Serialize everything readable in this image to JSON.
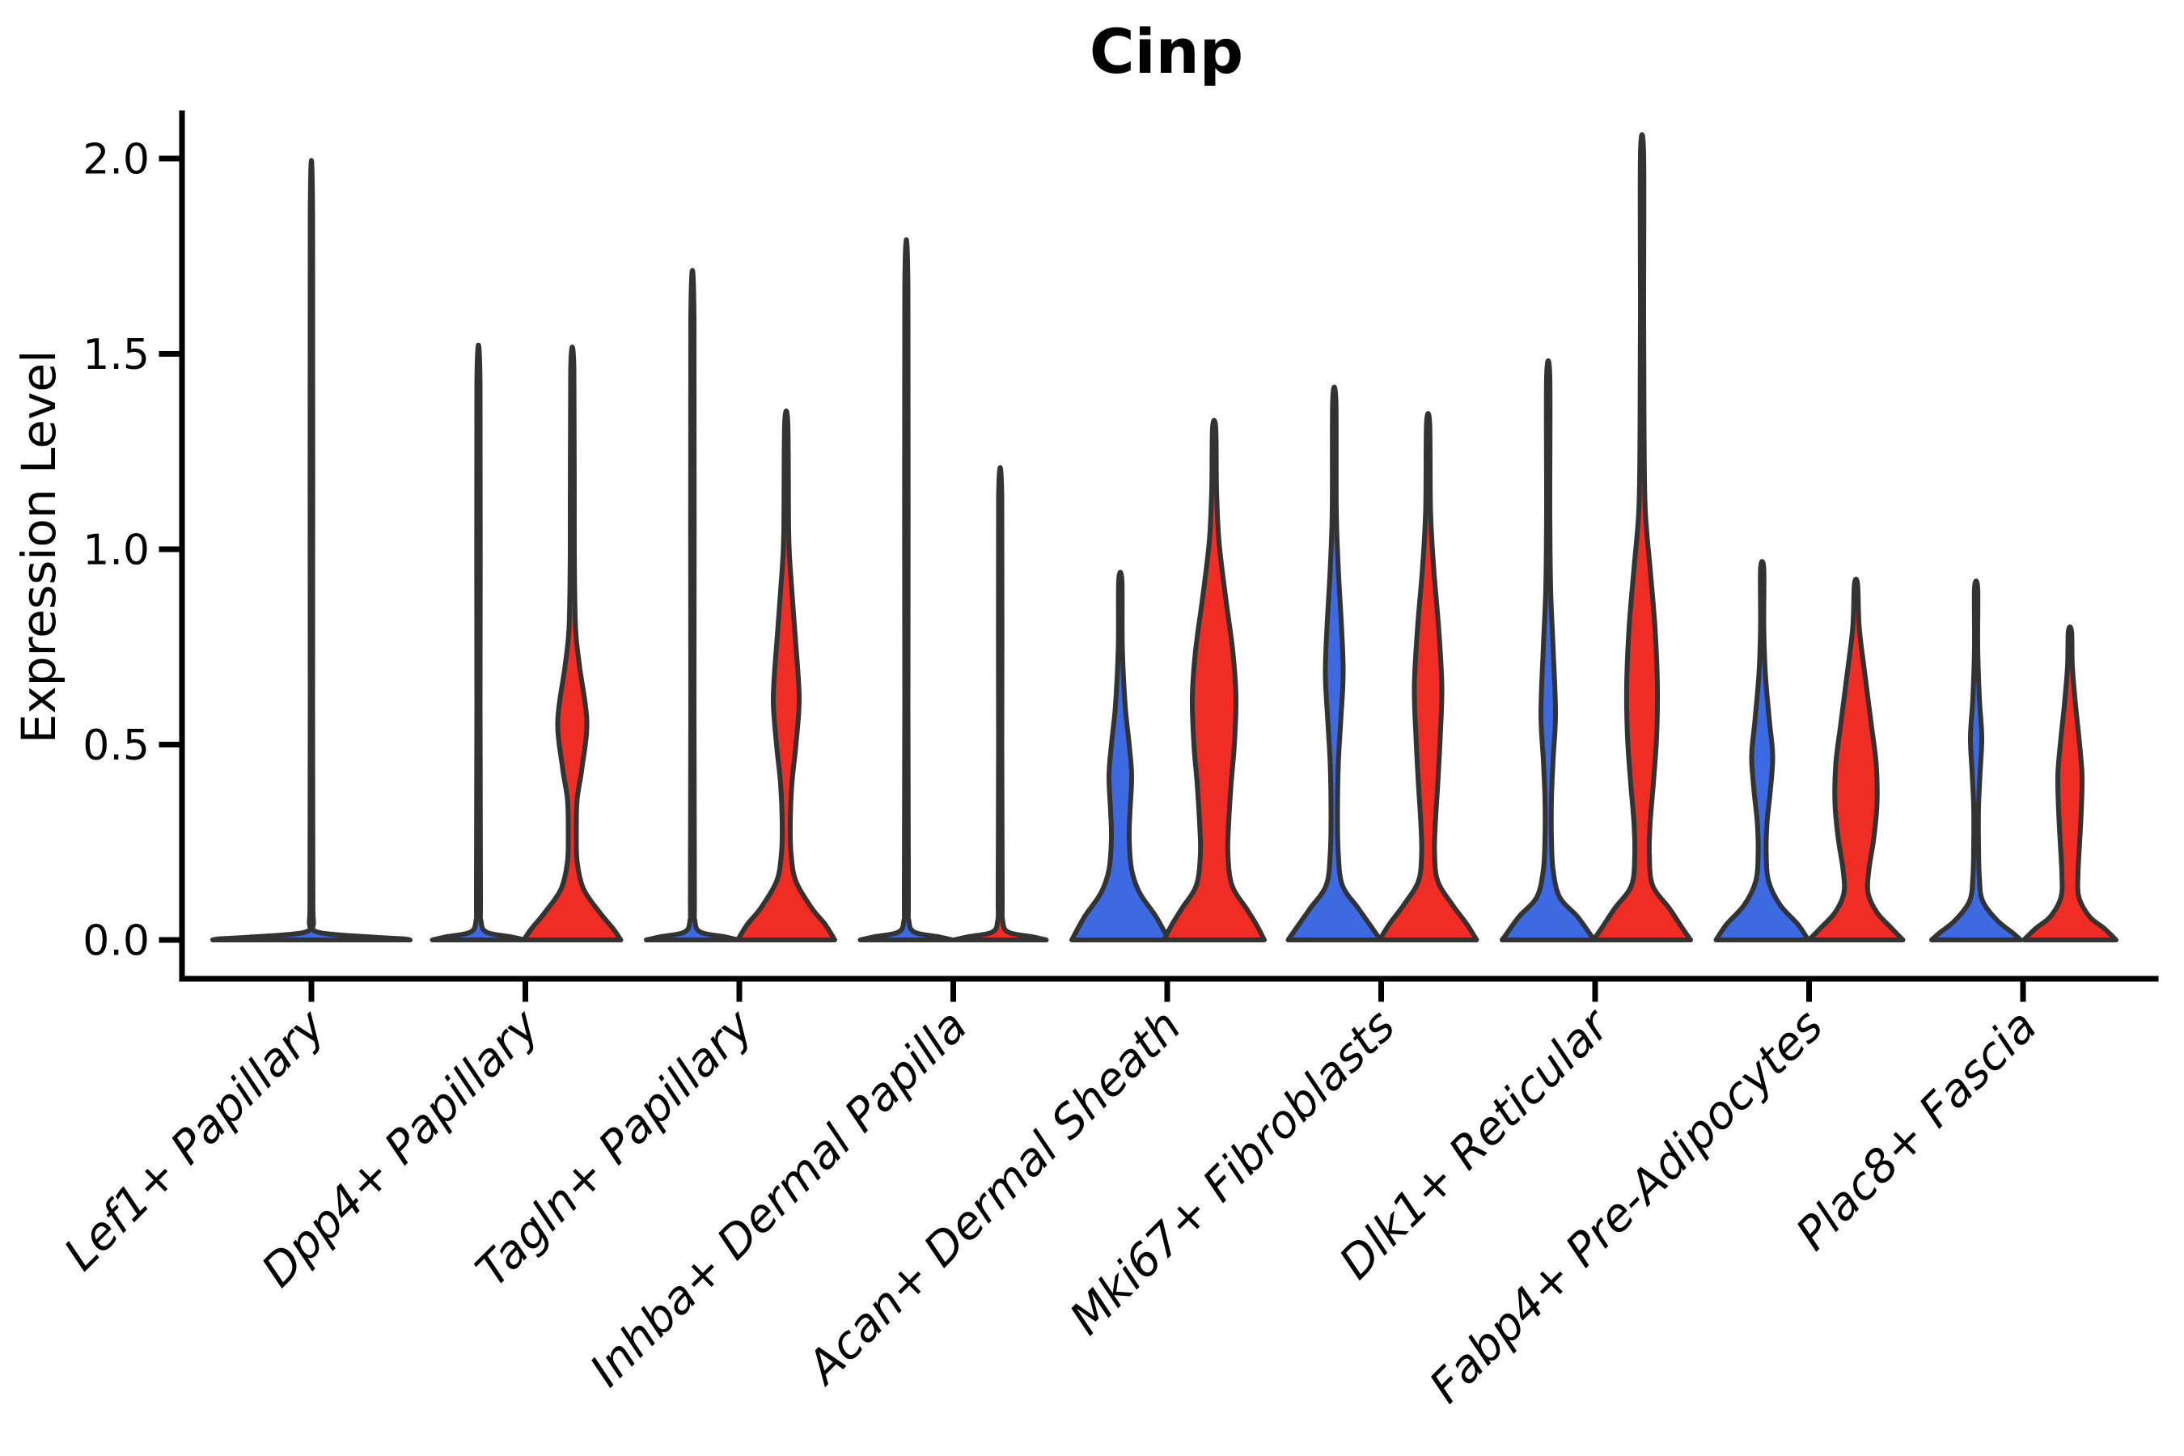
{
  "chart_data": {
    "type": "violin",
    "title": "Cinp",
    "ylabel": "Expression Level",
    "xlabel": "",
    "ylim": [
      0,
      2.1
    ],
    "yticks": [
      0.0,
      0.5,
      1.0,
      1.5,
      2.0
    ],
    "ytick_labels": [
      "0.0",
      "0.5",
      "1.0",
      "1.5",
      "2.0"
    ],
    "grid": false,
    "legend": "none",
    "categories": [
      "Lef1+ Papillary",
      "Dpp4+ Papillary",
      "Tagln+ Papillary",
      "Inhba+ Dermal Papilla",
      "Acan+ Dermal Sheath",
      "Mki67+ Fibroblasts",
      "Dlk1+ Reticular",
      "Fabp4+ Pre-Adipocytes",
      "Plac8+ Fascia"
    ],
    "series_colors": {
      "blue": "#3D6AE1",
      "red": "#EF2D24"
    },
    "outline_color": "#333333",
    "axis_color": "#000000",
    "violins": [
      {
        "category_index": 0,
        "side": "center",
        "color": "none_flat",
        "fill": "blue",
        "max_expression": 1.84,
        "profile": [
          [
            1.84,
            1.5
          ],
          [
            0.6,
            1.5
          ],
          [
            0.15,
            1.8
          ],
          [
            0.05,
            2.5
          ],
          [
            0.02,
            8
          ],
          [
            0.008,
            70
          ],
          [
            0.003,
            112
          ],
          [
            0,
            122
          ]
        ]
      },
      {
        "category_index": 1,
        "side": "left",
        "color": "blue",
        "max_expression": 1.42,
        "profile": [
          [
            1.42,
            2
          ],
          [
            0.6,
            2
          ],
          [
            0.12,
            2.5
          ],
          [
            0.05,
            3
          ],
          [
            0.02,
            10
          ],
          [
            0.008,
            40
          ],
          [
            0,
            57
          ]
        ]
      },
      {
        "category_index": 1,
        "side": "right",
        "color": "red",
        "max_expression": 1.46,
        "profile": [
          [
            1.46,
            2
          ],
          [
            1.0,
            2.5
          ],
          [
            0.8,
            4
          ],
          [
            0.7,
            9
          ],
          [
            0.56,
            18
          ],
          [
            0.44,
            12
          ],
          [
            0.36,
            6
          ],
          [
            0.28,
            5
          ],
          [
            0.2,
            6
          ],
          [
            0.13,
            14
          ],
          [
            0.07,
            34
          ],
          [
            0.03,
            50
          ],
          [
            0,
            60
          ]
        ]
      },
      {
        "category_index": 2,
        "side": "left",
        "color": "blue",
        "max_expression": 1.59,
        "profile": [
          [
            1.59,
            2
          ],
          [
            0.6,
            2
          ],
          [
            0.12,
            2.5
          ],
          [
            0.05,
            3
          ],
          [
            0.02,
            10
          ],
          [
            0.008,
            40
          ],
          [
            0,
            57
          ]
        ]
      },
      {
        "category_index": 2,
        "side": "right",
        "color": "red",
        "max_expression": 1.32,
        "profile": [
          [
            1.32,
            2
          ],
          [
            1.05,
            3
          ],
          [
            0.95,
            5
          ],
          [
            0.78,
            11
          ],
          [
            0.62,
            16
          ],
          [
            0.5,
            12
          ],
          [
            0.4,
            7
          ],
          [
            0.3,
            5
          ],
          [
            0.22,
            6
          ],
          [
            0.15,
            12
          ],
          [
            0.08,
            32
          ],
          [
            0.04,
            48
          ],
          [
            0,
            60
          ]
        ]
      },
      {
        "category_index": 3,
        "side": "left",
        "color": "blue",
        "max_expression": 1.66,
        "profile": [
          [
            1.66,
            2
          ],
          [
            0.6,
            2
          ],
          [
            0.12,
            2.5
          ],
          [
            0.05,
            3
          ],
          [
            0.02,
            10
          ],
          [
            0.008,
            40
          ],
          [
            0,
            57
          ]
        ]
      },
      {
        "category_index": 3,
        "side": "right",
        "color": "red",
        "max_expression": 1.13,
        "profile": [
          [
            1.13,
            2
          ],
          [
            0.5,
            2
          ],
          [
            0.12,
            2.5
          ],
          [
            0.05,
            3
          ],
          [
            0.02,
            10
          ],
          [
            0.008,
            40
          ],
          [
            0,
            57
          ]
        ]
      },
      {
        "category_index": 4,
        "side": "left",
        "color": "blue",
        "max_expression": 0.92,
        "profile": [
          [
            0.92,
            2
          ],
          [
            0.75,
            2.5
          ],
          [
            0.6,
            6
          ],
          [
            0.5,
            11
          ],
          [
            0.42,
            14
          ],
          [
            0.33,
            12
          ],
          [
            0.26,
            11
          ],
          [
            0.18,
            14
          ],
          [
            0.12,
            24
          ],
          [
            0.06,
            44
          ],
          [
            0,
            60
          ]
        ]
      },
      {
        "category_index": 4,
        "side": "right",
        "color": "red",
        "max_expression": 1.31,
        "profile": [
          [
            1.31,
            2
          ],
          [
            1.15,
            3
          ],
          [
            1.02,
            6
          ],
          [
            0.88,
            14
          ],
          [
            0.74,
            23
          ],
          [
            0.62,
            27
          ],
          [
            0.5,
            25
          ],
          [
            0.4,
            21
          ],
          [
            0.3,
            18
          ],
          [
            0.22,
            17
          ],
          [
            0.14,
            22
          ],
          [
            0.08,
            40
          ],
          [
            0.04,
            52
          ],
          [
            0,
            62
          ]
        ]
      },
      {
        "category_index": 5,
        "side": "left",
        "color": "blue",
        "max_expression": 1.38,
        "profile": [
          [
            1.38,
            2
          ],
          [
            1.1,
            2.5
          ],
          [
            0.95,
            5
          ],
          [
            0.8,
            9
          ],
          [
            0.68,
            11
          ],
          [
            0.56,
            8
          ],
          [
            0.45,
            5
          ],
          [
            0.32,
            4
          ],
          [
            0.22,
            5
          ],
          [
            0.14,
            10
          ],
          [
            0.08,
            30
          ],
          [
            0.03,
            47
          ],
          [
            0,
            57
          ]
        ]
      },
      {
        "category_index": 5,
        "side": "right",
        "color": "red",
        "max_expression": 1.32,
        "profile": [
          [
            1.32,
            2
          ],
          [
            1.1,
            3
          ],
          [
            0.95,
            7
          ],
          [
            0.8,
            13
          ],
          [
            0.65,
            17
          ],
          [
            0.52,
            15
          ],
          [
            0.4,
            12
          ],
          [
            0.3,
            9
          ],
          [
            0.22,
            8
          ],
          [
            0.15,
            12
          ],
          [
            0.09,
            30
          ],
          [
            0.04,
            48
          ],
          [
            0,
            60
          ]
        ]
      },
      {
        "category_index": 6,
        "side": "left",
        "color": "blue",
        "max_expression": 1.44,
        "profile": [
          [
            1.44,
            2
          ],
          [
            1.1,
            2
          ],
          [
            0.9,
            3
          ],
          [
            0.75,
            6
          ],
          [
            0.58,
            9
          ],
          [
            0.46,
            6
          ],
          [
            0.36,
            4
          ],
          [
            0.26,
            4
          ],
          [
            0.18,
            6
          ],
          [
            0.11,
            14
          ],
          [
            0.06,
            36
          ],
          [
            0.02,
            50
          ],
          [
            0,
            57
          ]
        ]
      },
      {
        "category_index": 6,
        "side": "right",
        "color": "red",
        "max_expression": 2.01,
        "profile": [
          [
            2.01,
            2
          ],
          [
            1.6,
            2
          ],
          [
            1.3,
            2.5
          ],
          [
            1.1,
            4
          ],
          [
            0.95,
            10
          ],
          [
            0.8,
            16
          ],
          [
            0.65,
            19
          ],
          [
            0.52,
            18
          ],
          [
            0.4,
            14
          ],
          [
            0.3,
            10
          ],
          [
            0.22,
            9
          ],
          [
            0.14,
            13
          ],
          [
            0.08,
            34
          ],
          [
            0.03,
            50
          ],
          [
            0,
            60
          ]
        ]
      },
      {
        "category_index": 7,
        "side": "left",
        "color": "blue",
        "max_expression": 0.95,
        "profile": [
          [
            0.95,
            2
          ],
          [
            0.8,
            2
          ],
          [
            0.68,
            4
          ],
          [
            0.56,
            9
          ],
          [
            0.47,
            13
          ],
          [
            0.38,
            10
          ],
          [
            0.3,
            6
          ],
          [
            0.22,
            5
          ],
          [
            0.15,
            8
          ],
          [
            0.09,
            22
          ],
          [
            0.04,
            44
          ],
          [
            0,
            57
          ]
        ]
      },
      {
        "category_index": 7,
        "side": "right",
        "color": "red",
        "max_expression": 0.91,
        "profile": [
          [
            0.91,
            2
          ],
          [
            0.8,
            4
          ],
          [
            0.68,
            11
          ],
          [
            0.55,
            19
          ],
          [
            0.45,
            25
          ],
          [
            0.35,
            26
          ],
          [
            0.26,
            22
          ],
          [
            0.18,
            16
          ],
          [
            0.12,
            15
          ],
          [
            0.07,
            26
          ],
          [
            0.03,
            44
          ],
          [
            0,
            58
          ]
        ]
      },
      {
        "category_index": 8,
        "side": "left",
        "color": "blue",
        "max_expression": 0.9,
        "profile": [
          [
            0.9,
            2
          ],
          [
            0.75,
            2
          ],
          [
            0.62,
            4
          ],
          [
            0.52,
            7
          ],
          [
            0.43,
            5
          ],
          [
            0.34,
            3
          ],
          [
            0.24,
            3
          ],
          [
            0.16,
            4
          ],
          [
            0.1,
            8
          ],
          [
            0.05,
            26
          ],
          [
            0.02,
            44
          ],
          [
            0,
            55
          ]
        ]
      },
      {
        "category_index": 8,
        "side": "right",
        "color": "red",
        "max_expression": 0.79,
        "profile": [
          [
            0.79,
            2
          ],
          [
            0.7,
            3
          ],
          [
            0.6,
            7
          ],
          [
            0.5,
            12
          ],
          [
            0.42,
            15
          ],
          [
            0.33,
            14
          ],
          [
            0.25,
            12
          ],
          [
            0.17,
            10
          ],
          [
            0.11,
            11
          ],
          [
            0.06,
            24
          ],
          [
            0.03,
            42
          ],
          [
            0,
            57
          ]
        ]
      }
    ]
  }
}
